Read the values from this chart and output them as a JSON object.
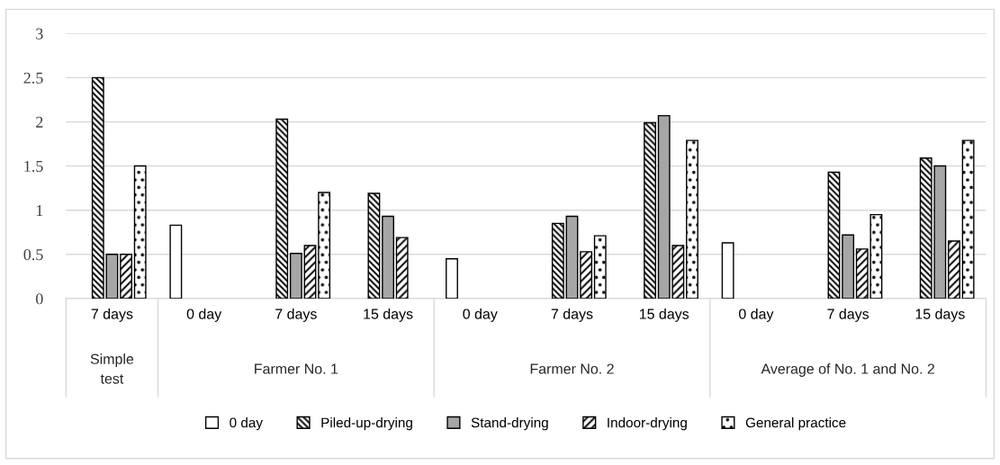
{
  "chart_data": {
    "type": "bar",
    "categories": [
      "7 days",
      "0 day",
      "7 days",
      "15 days",
      "0 day",
      "7 days",
      "15 days",
      "0 day",
      "7 days",
      "15 days"
    ],
    "series": [
      {
        "name": "0 day",
        "color": "#ffffff",
        "values": [
          null,
          0.83,
          null,
          null,
          0.45,
          null,
          null,
          0.63,
          null,
          null
        ]
      },
      {
        "name": "Piled-up-drying",
        "color": "#000000",
        "values": [
          2.5,
          null,
          2.03,
          1.19,
          null,
          0.85,
          1.99,
          null,
          1.43,
          1.59
        ]
      },
      {
        "name": "Stand-drying",
        "color": "#a6a6a6",
        "values": [
          0.5,
          null,
          0.51,
          0.93,
          null,
          0.93,
          2.07,
          null,
          0.72,
          1.5
        ]
      },
      {
        "name": "Indoor-drying",
        "color": "#000000",
        "values": [
          0.5,
          null,
          0.6,
          0.69,
          null,
          0.53,
          0.6,
          null,
          0.56,
          0.65
        ]
      },
      {
        "name": "General practice",
        "color": "#000000",
        "values": [
          1.5,
          null,
          1.2,
          null,
          null,
          0.71,
          1.79,
          null,
          0.95,
          1.79
        ]
      }
    ],
    "annotations": [
      "Simple\ntest",
      "Farmer No. 1",
      "Farmer No. 2",
      "Average of No. 1 and No. 2"
    ],
    "ylim": [
      0,
      3
    ],
    "yticks": [
      0,
      0.5,
      1,
      1.5,
      2,
      2.5,
      3
    ],
    "grid": "y",
    "legend": "bottom"
  }
}
